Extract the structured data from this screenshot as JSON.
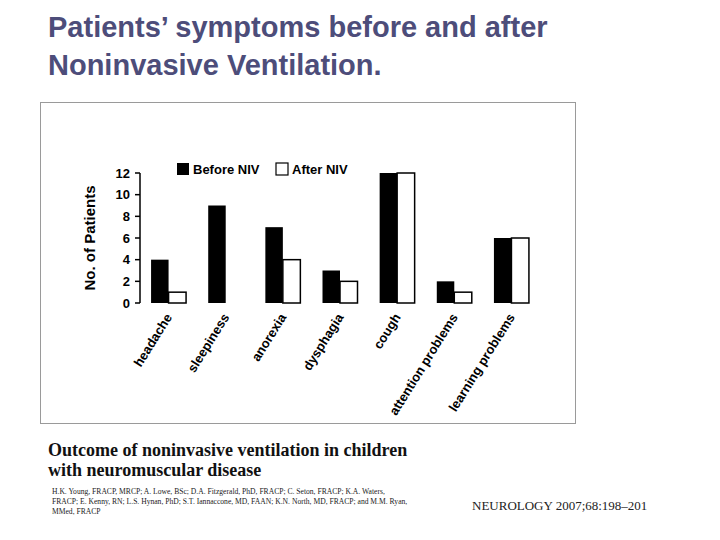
{
  "chart_data": {
    "type": "bar",
    "title": "Patients’ symptoms before and after Noninvasive Ventilation.",
    "y_label": "No. of Patients",
    "categories": [
      "headache",
      "sleepiness",
      "anorexia",
      "dysphagia",
      "cough",
      "attention problems",
      "learning problems"
    ],
    "series": [
      {
        "name": "Before NIV",
        "color": "#000000",
        "values": [
          4,
          9,
          7,
          3,
          12,
          2,
          6
        ]
      },
      {
        "name": "After NIV",
        "color": "#ffffff",
        "values": [
          1,
          0,
          4,
          2,
          12,
          1,
          6
        ]
      }
    ],
    "ylim": [
      0,
      12
    ],
    "yticks": [
      0,
      2,
      4,
      6,
      8,
      10,
      12
    ],
    "legend": "top"
  },
  "citation": {
    "title": "Outcome of noninvasive ventilation in children with neuromuscular disease",
    "authors": "H.K. Young, FRACP, MRCP; A. Lowe, BSc; D.A. Fitzgerald, PhD, FRACP; C. Seton, FRACP; K.A. Waters, FRACP; E. Kenny, RN; L.S. Hynan, PhD; S.T. Iannaccone, MD, FAAN; K.N. North, MD, FRACP; and M.M. Ryan, MMed, FRACP",
    "journal": "NEUROLOGY 2007;68:198–201"
  }
}
